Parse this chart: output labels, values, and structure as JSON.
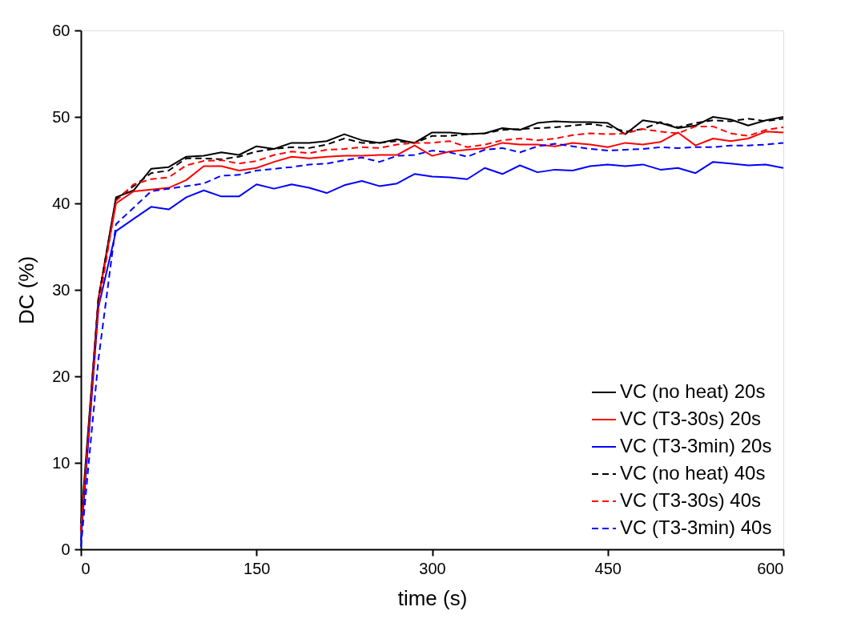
{
  "chart_data": {
    "type": "line",
    "xlabel": "time (s)",
    "ylabel": "DC (%)",
    "xlim": [
      0,
      600
    ],
    "ylim": [
      0,
      60
    ],
    "xticks": [
      0,
      150,
      300,
      450,
      600
    ],
    "yticks": [
      0,
      10,
      20,
      30,
      40,
      50,
      60
    ],
    "grid": false,
    "legend": "bottom right",
    "marker": "none",
    "x": [
      0,
      15,
      30,
      45,
      60,
      75,
      90,
      105,
      120,
      135,
      150,
      165,
      180,
      195,
      210,
      225,
      240,
      255,
      270,
      285,
      300,
      315,
      330,
      345,
      360,
      375,
      390,
      405,
      420,
      435,
      450,
      465,
      480,
      495,
      510,
      525,
      540,
      555,
      570,
      585,
      600
    ],
    "series": [
      {
        "name": "VC (no heat) 20s",
        "color": "#000000",
        "line_style": "solid",
        "values": [
          3,
          29,
          40.7,
          41.5,
          44,
          44.2,
          45.4,
          45.5,
          45.9,
          45.6,
          46.6,
          46.3,
          47,
          47,
          47.2,
          48,
          47.3,
          47,
          47.4,
          47,
          48.2,
          48.2,
          48,
          48.1,
          48.7,
          48.5,
          49.3,
          49.5,
          49.4,
          49.4,
          49.3,
          48,
          49.6,
          49.3,
          48.7,
          49,
          50,
          49.7,
          49,
          49.6,
          50
        ]
      },
      {
        "name": "VC (T3-30s) 20s",
        "color": "#ff0000",
        "line_style": "solid",
        "values": [
          2,
          29,
          40,
          41.4,
          41.6,
          41.8,
          42.7,
          44.3,
          44.3,
          43.8,
          44.1,
          44.8,
          45.4,
          45.2,
          45.4,
          45.5,
          45.5,
          45.6,
          45.6,
          46.7,
          45.5,
          46,
          46.2,
          46.4,
          47,
          46.8,
          46.8,
          46.6,
          47,
          46.8,
          46.5,
          47,
          46.8,
          47.1,
          48.2,
          46.7,
          47.5,
          47.2,
          47.5,
          48.3,
          48.2
        ]
      },
      {
        "name": "VC (T3-3min) 20s",
        "color": "#0000ff",
        "line_style": "solid",
        "values": [
          1,
          28,
          36.8,
          38.2,
          39.6,
          39.3,
          40.7,
          41.5,
          40.8,
          40.8,
          42.2,
          41.7,
          42.2,
          41.8,
          41.2,
          42.1,
          42.6,
          42,
          42.3,
          43.4,
          43.1,
          43,
          42.8,
          44.1,
          43.4,
          44.4,
          43.6,
          43.9,
          43.8,
          44.3,
          44.5,
          44.3,
          44.5,
          43.9,
          44.1,
          43.5,
          44.8,
          44.6,
          44.4,
          44.5,
          44.1
        ]
      },
      {
        "name": "VC (no heat) 40s",
        "color": "#000000",
        "line_style": "dashed",
        "values": [
          2,
          29,
          40.5,
          42,
          43.5,
          43.8,
          45.2,
          45.2,
          45.1,
          45.4,
          46,
          46.3,
          46.5,
          46.4,
          46.8,
          47.5,
          47,
          47,
          47.2,
          47,
          47.8,
          47.8,
          48,
          48.1,
          48.5,
          48.6,
          48.7,
          48.8,
          49,
          49.2,
          48.9,
          48.3,
          48.6,
          49.4,
          48.8,
          49.3,
          49.6,
          49.5,
          49.8,
          49.5,
          49.8
        ]
      },
      {
        "name": "VC (T3-30s) 40s",
        "color": "#ff0000",
        "line_style": "dashed",
        "values": [
          2,
          28,
          40.3,
          42.2,
          42.8,
          43,
          44.4,
          44.9,
          45,
          44.6,
          44.9,
          45.6,
          46,
          45.8,
          46.2,
          46.3,
          46.5,
          46.4,
          46.8,
          47,
          47,
          47.2,
          46.5,
          46.8,
          47.3,
          47.5,
          47.3,
          47.5,
          47.9,
          48.1,
          48,
          48.1,
          48.6,
          48.3,
          48.1,
          48.9,
          48.9,
          48.1,
          47.8,
          48.5,
          48.8
        ]
      },
      {
        "name": "VC (T3-3min) 40s",
        "color": "#0000ff",
        "line_style": "dashed",
        "values": [
          0.3,
          22,
          37.6,
          39.5,
          41.4,
          41.7,
          42,
          42.3,
          43.2,
          43.3,
          43.8,
          44,
          44.2,
          44.5,
          44.6,
          45,
          45.3,
          44.8,
          45.5,
          45.6,
          46.1,
          45.9,
          45.4,
          46.2,
          46.4,
          45.9,
          46.6,
          46.9,
          46.6,
          46.3,
          46.1,
          46.2,
          46.3,
          46.5,
          46.4,
          46.5,
          46.5,
          46.7,
          46.7,
          46.8,
          47
        ]
      }
    ]
  }
}
